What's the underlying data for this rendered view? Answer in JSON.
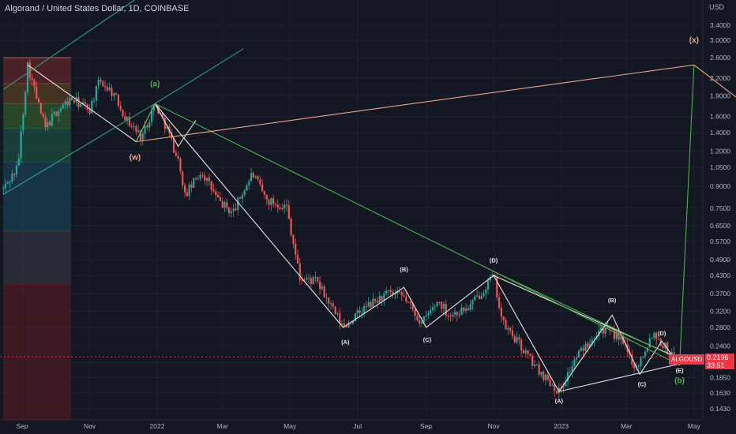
{
  "header": {
    "title": "Algorand / United States Dollar, 1D, COINBASE",
    "currency_unit": "USD"
  },
  "price_tag": {
    "symbol": "ALGOUSD",
    "price": "0.2196",
    "countdown": "33:51"
  },
  "colors": {
    "background": "#131722",
    "grid": "#1e222d",
    "up_candle": "#26a69a",
    "down_candle": "#ef5350",
    "white_wave": "#e6e6e6",
    "green_wave": "#4caf50",
    "salmon_line": "#e8a888",
    "teal_line": "#2e9c7e",
    "price_tag": "#f23645"
  },
  "chart_data": {
    "type": "candlestick",
    "title": "Algorand / United States Dollar, 1D, COINBASE",
    "scale": "log",
    "ylim": [
      0.13,
      5.0
    ],
    "xlim": [
      "2021-08-15",
      "2023-06-10"
    ],
    "y_ticks": [
      "3.4000",
      "3.0000",
      "2.6000",
      "2.2000",
      "1.9000",
      "1.6000",
      "1.4000",
      "1.2000",
      "1.0500",
      "0.9000",
      "0.7500",
      "0.6500",
      "0.5700",
      "0.4900",
      "0.4300",
      "0.3700",
      "0.3200",
      "0.2800",
      "0.2400",
      "0.2100",
      "0.1850",
      "0.1630",
      "0.1430"
    ],
    "x_ticks": [
      {
        "date": "2021-09-01",
        "label": "Sep"
      },
      {
        "date": "2021-11-01",
        "label": "Nov"
      },
      {
        "date": "2022-01-01",
        "label": "2022"
      },
      {
        "date": "2022-03-01",
        "label": "Mar"
      },
      {
        "date": "2022-05-01",
        "label": "May"
      },
      {
        "date": "2022-07-01",
        "label": "Jul"
      },
      {
        "date": "2022-09-01",
        "label": "Sep"
      },
      {
        "date": "2022-11-01",
        "label": "Nov"
      },
      {
        "date": "2023-01-01",
        "label": "2023"
      },
      {
        "date": "2023-03-01",
        "label": "Mar"
      },
      {
        "date": "2023-05-01",
        "label": "May"
      }
    ],
    "current_price": 0.2196,
    "price_path": [
      [
        "2021-08-15",
        0.88
      ],
      [
        "2021-08-28",
        1.05
      ],
      [
        "2021-09-06",
        2.45
      ],
      [
        "2021-09-15",
        1.8
      ],
      [
        "2021-09-22",
        1.45
      ],
      [
        "2021-10-01",
        1.65
      ],
      [
        "2021-10-15",
        1.85
      ],
      [
        "2021-11-01",
        1.7
      ],
      [
        "2021-11-10",
        2.15
      ],
      [
        "2021-11-22",
        1.95
      ],
      [
        "2021-12-05",
        1.55
      ],
      [
        "2021-12-18",
        1.35
      ],
      [
        "2021-12-30",
        1.78
      ],
      [
        "2022-01-10",
        1.45
      ],
      [
        "2022-01-22",
        1.05
      ],
      [
        "2022-01-25",
        0.82
      ],
      [
        "2022-02-10",
        1.02
      ],
      [
        "2022-02-25",
        0.8
      ],
      [
        "2022-03-10",
        0.72
      ],
      [
        "2022-03-28",
        1.0
      ],
      [
        "2022-04-10",
        0.8
      ],
      [
        "2022-04-28",
        0.76
      ],
      [
        "2022-05-10",
        0.42
      ],
      [
        "2022-05-25",
        0.41
      ],
      [
        "2022-06-18",
        0.28
      ],
      [
        "2022-07-08",
        0.33
      ],
      [
        "2022-07-28",
        0.37
      ],
      [
        "2022-08-12",
        0.36
      ],
      [
        "2022-08-28",
        0.29
      ],
      [
        "2022-09-12",
        0.35
      ],
      [
        "2022-09-22",
        0.31
      ],
      [
        "2022-10-10",
        0.33
      ],
      [
        "2022-11-01",
        0.43
      ],
      [
        "2022-11-09",
        0.29
      ],
      [
        "2022-11-22",
        0.25
      ],
      [
        "2022-12-10",
        0.2
      ],
      [
        "2022-12-30",
        0.165
      ],
      [
        "2023-01-15",
        0.22
      ],
      [
        "2023-02-05",
        0.28
      ],
      [
        "2023-02-22",
        0.26
      ],
      [
        "2023-03-10",
        0.2
      ],
      [
        "2023-03-25",
        0.27
      ],
      [
        "2023-04-08",
        0.23
      ],
      [
        "2023-04-15",
        0.2196
      ]
    ],
    "elliott_labels": [
      {
        "text": "(a)",
        "date": "2021-12-30",
        "y": 2.05,
        "color": "green"
      },
      {
        "text": "(w)",
        "date": "2021-12-12",
        "y": 1.12,
        "color": "salmon"
      },
      {
        "text": "(A)",
        "date": "2022-06-20",
        "y": 0.244,
        "color": "white"
      },
      {
        "text": "(B)",
        "date": "2022-08-12",
        "y": 0.445,
        "color": "white"
      },
      {
        "text": "(C)",
        "date": "2022-09-02",
        "y": 0.249,
        "color": "white"
      },
      {
        "text": "(D)",
        "date": "2022-11-01",
        "y": 0.48,
        "color": "white"
      },
      {
        "text": "(A)",
        "date": "2022-12-30",
        "y": 0.15,
        "color": "white"
      },
      {
        "text": "(B)",
        "date": "2023-02-16",
        "y": 0.345,
        "color": "white"
      },
      {
        "text": "(C)",
        "date": "2023-03-15",
        "y": 0.172,
        "color": "white"
      },
      {
        "text": "(D)",
        "date": "2023-04-02",
        "y": 0.262,
        "color": "white"
      },
      {
        "text": "(E)",
        "date": "2023-04-18",
        "y": 0.193,
        "color": "white"
      },
      {
        "text": "(b)",
        "date": "2023-04-18",
        "y": 0.177,
        "color": "green"
      },
      {
        "text": "(x)",
        "date": "2023-05-01",
        "y": 2.95,
        "color": "salmon"
      }
    ],
    "wave_lines": [
      {
        "color": "white",
        "points": [
          [
            "2021-09-06",
            2.45
          ],
          [
            "2021-12-13",
            1.3
          ],
          [
            "2021-12-30",
            1.78
          ],
          [
            "2022-06-18",
            0.28
          ],
          [
            "2022-08-12",
            0.39
          ],
          [
            "2022-09-01",
            0.28
          ],
          [
            "2022-11-01",
            0.43
          ],
          [
            "2022-12-30",
            0.165
          ],
          [
            "2023-02-16",
            0.31
          ],
          [
            "2023-03-13",
            0.19
          ],
          [
            "2023-04-02",
            0.25
          ],
          [
            "2023-04-18",
            0.205
          ]
        ]
      },
      {
        "color": "white",
        "points": [
          [
            "2021-12-30",
            1.78
          ],
          [
            "2022-01-20",
            1.25
          ],
          [
            "2022-02-05",
            1.55
          ]
        ]
      },
      {
        "color": "white",
        "points": [
          [
            "2022-11-01",
            0.43
          ],
          [
            "2023-04-20",
            0.215
          ]
        ]
      },
      {
        "color": "white",
        "points": [
          [
            "2022-12-30",
            0.165
          ],
          [
            "2023-04-20",
            0.208
          ]
        ]
      },
      {
        "color": "green",
        "points": [
          [
            "2021-12-30",
            1.78
          ],
          [
            "2022-11-01",
            0.445
          ],
          [
            "2023-04-18",
            0.205
          ],
          [
            "2023-05-01",
            2.45
          ]
        ]
      },
      {
        "color": "green",
        "points": [
          [
            "2021-12-13",
            1.3
          ],
          [
            "2021-12-30",
            1.78
          ]
        ]
      },
      {
        "color": "green",
        "points": [
          [
            "2022-11-01",
            0.445
          ],
          [
            "2023-04-18",
            0.215
          ]
        ]
      },
      {
        "color": "salmon",
        "points": [
          [
            "2021-12-13",
            1.3
          ],
          [
            "2023-05-01",
            2.45
          ],
          [
            "2023-06-10",
            1.85
          ]
        ]
      },
      {
        "color": "teal",
        "points": [
          [
            "2021-08-15",
            0.84
          ],
          [
            "2021-12-30",
            1.78
          ],
          [
            "2022-03-20",
            2.8
          ]
        ]
      },
      {
        "color": "teal",
        "points": [
          [
            "2021-08-15",
            2.0
          ],
          [
            "2022-02-20",
            6.5
          ]
        ]
      }
    ],
    "fib_zones": [
      {
        "y_top": 2.6,
        "y_bottom": 2.1,
        "color": "#7a2a2e"
      },
      {
        "y_top": 2.1,
        "y_bottom": 1.78,
        "color": "#6e4a1f"
      },
      {
        "y_top": 1.78,
        "y_bottom": 1.45,
        "color": "#3c6b2c"
      },
      {
        "y_top": 1.45,
        "y_bottom": 1.1,
        "color": "#1f5e48"
      },
      {
        "y_top": 1.1,
        "y_bottom": 0.62,
        "color": "#1c4c66"
      },
      {
        "y_top": 0.62,
        "y_bottom": 0.4,
        "color": "#3a3d45"
      },
      {
        "y_top": 0.4,
        "y_bottom": 0.13,
        "color": "#5c1c22"
      }
    ]
  }
}
